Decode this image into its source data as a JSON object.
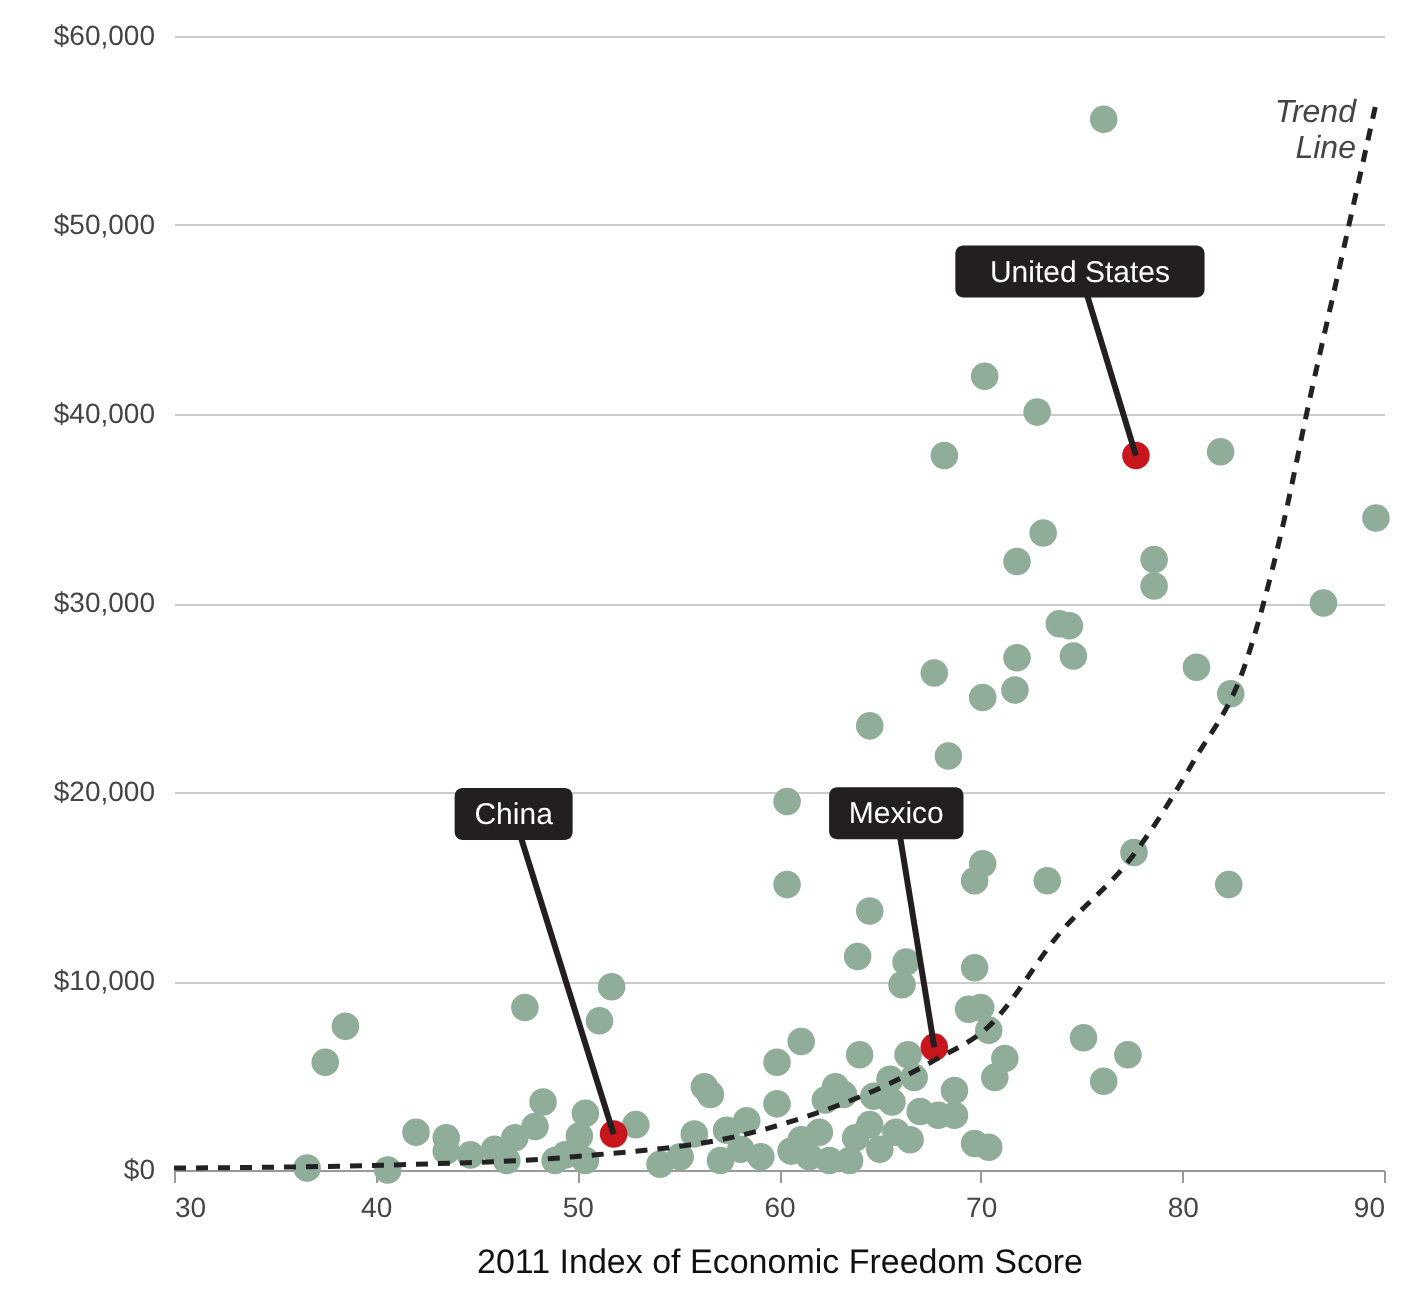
{
  "chart_data": {
    "type": "scatter",
    "xlabel": "2011 Index of Economic Freedom Score",
    "xlim": [
      30,
      90
    ],
    "xticks": [
      30,
      40,
      50,
      60,
      70,
      80,
      90
    ],
    "ylim": [
      0,
      60000
    ],
    "yticks": [
      {
        "value": 0,
        "label": "$0"
      },
      {
        "value": 10000,
        "label": "$10,000"
      },
      {
        "value": 20000,
        "label": "$20,000"
      },
      {
        "value": 30000,
        "label": "$30,000"
      },
      {
        "value": 40000,
        "label": "$40,000"
      },
      {
        "value": 50000,
        "label": "$50,000"
      },
      {
        "value": 60000,
        "label": "$60,000"
      }
    ],
    "grid": "y",
    "marker": "circle",
    "line_style": "dashed",
    "series": [
      {
        "color": "#8fad98",
        "x": [
          36.6,
          37.5,
          38.5,
          40.6,
          42.0,
          43.5,
          43.5,
          44.7,
          45.9,
          46.9,
          47.4,
          47.9,
          48.3,
          46.5,
          48.9,
          49.4,
          51.1,
          51.7,
          50.4,
          52.9,
          50.1,
          50.4,
          54.1,
          55.1,
          55.8,
          56.3,
          56.6,
          57.1,
          57.4,
          58.1,
          58.4,
          59.1,
          59.9,
          59.9,
          60.4,
          60.4,
          60.6,
          61.1,
          61.1,
          61.5,
          62.0,
          62.3,
          62.5,
          62.8,
          63.2,
          63.5,
          63.8,
          64.0,
          64.5,
          64.5,
          64.5,
          64.7,
          63.9,
          65.0,
          65.5,
          65.6,
          65.8,
          66.1,
          66.3,
          66.4,
          66.5,
          66.7,
          67.0,
          67.7,
          67.9,
          68.2,
          68.4,
          68.7,
          68.7,
          69.4,
          69.7,
          69.7,
          69.7,
          70.0,
          70.1,
          70.1,
          70.2,
          70.4,
          70.4,
          70.7,
          71.2,
          71.7,
          71.8,
          71.8,
          72.8,
          73.1,
          73.3,
          73.9,
          74.4,
          74.6,
          75.1,
          76.1,
          76.1,
          77.3,
          77.6,
          78.6,
          78.6,
          80.7,
          81.9,
          82.3,
          82.4,
          87.0,
          89.6
        ],
        "values": [
          100,
          5700,
          7600,
          0,
          2000,
          1700,
          1000,
          800,
          1100,
          1700,
          8600,
          2300,
          3600,
          500,
          500,
          800,
          7900,
          9700,
          3000,
          2400,
          1800,
          500,
          300,
          700,
          1900,
          4400,
          4000,
          500,
          2100,
          1100,
          2600,
          700,
          5700,
          3500,
          19500,
          15100,
          1000,
          6800,
          1600,
          700,
          2000,
          3700,
          500,
          4400,
          4000,
          500,
          1700,
          6100,
          2400,
          13700,
          23500,
          3900,
          11300,
          1100,
          4800,
          3600,
          2000,
          9800,
          11000,
          6100,
          1600,
          4900,
          3100,
          26300,
          2900,
          37800,
          21900,
          4200,
          2900,
          8500,
          10700,
          15300,
          1400,
          8600,
          16200,
          25000,
          42000,
          7400,
          1200,
          4900,
          5900,
          25400,
          27100,
          32200,
          40100,
          33700,
          15300,
          28900,
          28800,
          27200,
          7000,
          55600,
          4700,
          6100,
          16800,
          32300,
          30900,
          26600,
          38000,
          15100,
          25200,
          30000,
          34500
        ]
      },
      {
        "color": "#c8161d",
        "x": [
          51.8,
          67.7,
          77.7
        ],
        "values": [
          1900,
          6500,
          37800
        ]
      },
      {
        "name": "Trend Line",
        "type": "line",
        "marker": "none",
        "color": "#222222",
        "x": [
          30,
          41.9,
          49.8,
          59.1,
          67.7,
          70.4,
          73.9,
          77.6,
          80.6,
          83.1,
          84.9,
          86.3,
          87.8,
          89.6
        ],
        "values": [
          100,
          300,
          700,
          2100,
          5800,
          7600,
          12500,
          16700,
          21700,
          26700,
          33700,
          40700,
          47800,
          56400
        ]
      }
    ],
    "annotations": [
      {
        "text": "China",
        "x": 51.8,
        "y": 1900
      },
      {
        "text": "Mexico",
        "x": 67.7,
        "y": 6500
      },
      {
        "text": "United States",
        "x": 77.7,
        "y": 37800
      }
    ]
  }
}
